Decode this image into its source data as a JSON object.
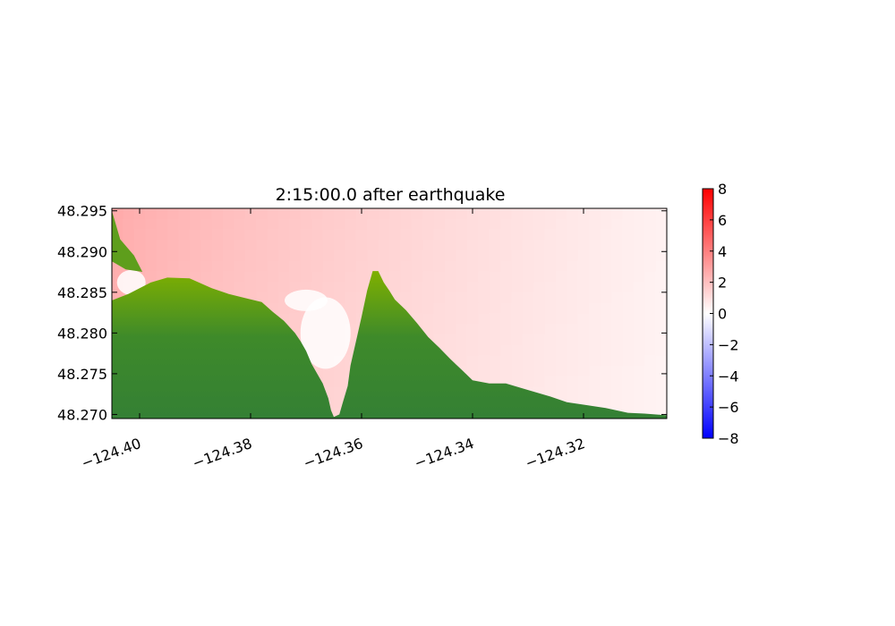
{
  "chart_data": {
    "type": "heatmap",
    "title": "2:15:00.0 after earthquake",
    "xlabel": "",
    "ylabel": "",
    "xlim": [
      -124.405,
      -124.305
    ],
    "ylim": [
      48.2695,
      48.2953
    ],
    "x_ticks": [
      {
        "value": -124.4,
        "label": "−124.40"
      },
      {
        "value": -124.38,
        "label": "−124.38"
      },
      {
        "value": -124.36,
        "label": "−124.36"
      },
      {
        "value": -124.34,
        "label": "−124.34"
      },
      {
        "value": -124.32,
        "label": "−124.32"
      }
    ],
    "y_ticks": [
      {
        "value": 48.295,
        "label": "48.295"
      },
      {
        "value": 48.29,
        "label": "48.290"
      },
      {
        "value": 48.285,
        "label": "48.285"
      },
      {
        "value": 48.28,
        "label": "48.280"
      },
      {
        "value": 48.275,
        "label": "48.275"
      },
      {
        "value": 48.27,
        "label": "48.270"
      }
    ],
    "colorbar": {
      "min": -8,
      "max": 8,
      "colormap": "bwr",
      "ticks": [
        {
          "value": 8,
          "label": "8"
        },
        {
          "value": 6,
          "label": "6"
        },
        {
          "value": 4,
          "label": "4"
        },
        {
          "value": 2,
          "label": "2"
        },
        {
          "value": 0,
          "label": "0"
        },
        {
          "value": -2,
          "label": "−2"
        },
        {
          "value": -4,
          "label": "−4"
        },
        {
          "value": -6,
          "label": "−6"
        },
        {
          "value": -8,
          "label": "−8"
        }
      ]
    },
    "water_surface_level_range": [
      0.2,
      1.2
    ],
    "land_colors": {
      "low": "#7fb000",
      "high": "#348034"
    },
    "land_boundary": {
      "x": [
        -124.405,
        -124.402,
        -124.398,
        -124.395,
        -124.391,
        -124.389,
        -124.387,
        -124.384,
        -124.381,
        -124.378,
        -124.376,
        -124.374,
        -124.372,
        -124.371,
        -124.37,
        -124.369,
        -124.368,
        -124.367,
        -124.366,
        -124.3655,
        -124.365,
        -124.364,
        -124.3635,
        -124.3625,
        -124.362,
        -124.361,
        -124.36,
        -124.359,
        -124.358,
        -124.357,
        -124.356,
        -124.355,
        -124.354,
        -124.352,
        -124.35,
        -124.348,
        -124.346,
        -124.344,
        -124.342,
        -124.34,
        -124.337,
        -124.334,
        -124.33,
        -124.326,
        -124.323,
        -124.32,
        -124.316,
        -124.312,
        -124.309,
        -124.305
      ],
      "y": [
        48.284,
        48.2848,
        48.2862,
        48.2868,
        48.2867,
        48.2861,
        48.2855,
        48.2848,
        48.2843,
        48.2838,
        48.2826,
        48.2815,
        48.28,
        48.279,
        48.2778,
        48.2762,
        48.275,
        48.2738,
        48.272,
        48.2705,
        48.2697,
        48.27,
        48.2712,
        48.2735,
        48.276,
        48.279,
        48.282,
        48.2852,
        48.2876,
        48.2876,
        48.2862,
        48.2852,
        48.2841,
        48.2828,
        48.2812,
        48.2795,
        48.2782,
        48.2768,
        48.2755,
        48.2742,
        48.2738,
        48.2738,
        48.273,
        48.2722,
        48.2715,
        48.2712,
        48.2708,
        48.2702,
        48.2701,
        48.2699
      ]
    }
  }
}
